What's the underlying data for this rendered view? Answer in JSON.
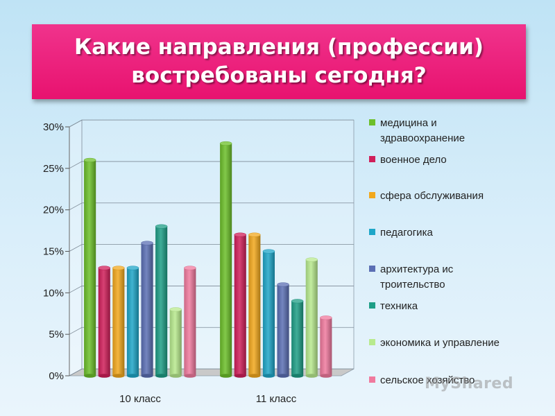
{
  "title": {
    "line1": "Какие направления (профессии)",
    "line2": "востребованы сегодня?"
  },
  "chart_data": {
    "type": "bar",
    "title": "Какие направления (профессии) востребованы сегодня?",
    "categories": [
      "10 класс",
      "11 класс"
    ],
    "yticks": [
      "0%",
      "5%",
      "10%",
      "15%",
      "20%",
      "25%",
      "30%"
    ],
    "ylim": [
      0,
      30
    ],
    "grid": true,
    "legend_position": "right",
    "series": [
      {
        "name": "медицина и здравоохранение",
        "legend_lines": [
          "медицина и",
          "здравоохранение"
        ],
        "color": "#6cbf2a",
        "values": [
          26,
          28
        ]
      },
      {
        "name": "военное дело",
        "legend_lines": [
          "военное дело"
        ],
        "color": "#d01f5a",
        "values": [
          13,
          17
        ]
      },
      {
        "name": "сфера обслуживания",
        "legend_lines": [
          "сфера обслуживания"
        ],
        "color": "#f2a81d",
        "values": [
          13,
          17
        ]
      },
      {
        "name": "педагогика",
        "legend_lines": [
          "педагогика"
        ],
        "color": "#1ea6c8",
        "values": [
          13,
          15
        ]
      },
      {
        "name": "архитектура ис троительство",
        "legend_lines": [
          "архитектура ис",
          "троительство"
        ],
        "color": "#5b6fb4",
        "values": [
          16,
          11
        ]
      },
      {
        "name": "техника",
        "legend_lines": [
          "техника"
        ],
        "color": "#1e9e86",
        "values": [
          18,
          9
        ]
      },
      {
        "name": "экономика и управление",
        "legend_lines": [
          "экономика и управление"
        ],
        "color": "#b8ea8e",
        "values": [
          8,
          14
        ]
      },
      {
        "name": "сельское хозяйство",
        "legend_lines": [
          "сельское хозяйство"
        ],
        "color": "#f07a9e",
        "values": [
          13,
          7
        ]
      }
    ]
  },
  "watermark": "MyShared"
}
